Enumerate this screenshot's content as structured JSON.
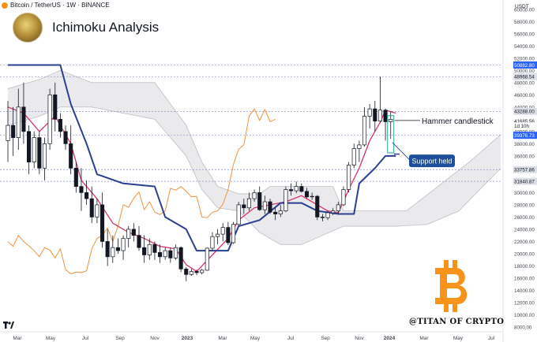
{
  "header": {
    "symbol": "Bitcoin / TetherUS · 1W · BINANCE",
    "title": "Ichimoku Analysis",
    "currency": "USDT"
  },
  "branding": {
    "watermark": "@TITAN OF CRYPTO",
    "logo_letter": "₿",
    "tv_logo": "TV"
  },
  "annotations": {
    "hammer": "Hammer candlestick",
    "support": "Support held"
  },
  "colors": {
    "up": "#26a69a",
    "down": "#ef5350",
    "bar": "#131722",
    "kijun": "#2a3f8f",
    "tenkan": "#d6336c",
    "chikou": "#f0923b",
    "cloud": "#e6e6ea",
    "axis_badge": "#2962ff",
    "bitcoin": "#f7931a"
  },
  "chart_data": {
    "type": "candlestick",
    "title": "Ichimoku Analysis",
    "x_axis_labels": [
      "Mar",
      "May",
      "Jul",
      "Sep",
      "Nov",
      "2023",
      "Mar",
      "May",
      "Jul",
      "Sep",
      "Nov",
      "2024",
      "Mar",
      "May",
      "Jul"
    ],
    "y_axis_ticks": [
      8000,
      10000,
      12000,
      14000,
      16000,
      18000,
      20000,
      22000,
      24000,
      26000,
      28000,
      30000,
      32000,
      34000,
      36000,
      38000,
      40000,
      42000,
      44000,
      46000,
      48000,
      50000,
      52000,
      54000,
      56000,
      58000,
      60000
    ],
    "price_labels": [
      {
        "label": "50882.80",
        "value": 50883,
        "style": "blue"
      },
      {
        "label": "48968.54",
        "value": 48969,
        "style": "gray"
      },
      {
        "label": "43288.00",
        "value": 43288,
        "style": "gray"
      },
      {
        "label": "41685.56",
        "value": 41686,
        "style": "plain"
      },
      {
        "label": "1d 10h",
        "value": 40900,
        "style": "plain"
      },
      {
        "label": "39376.73",
        "value": 39377,
        "style": "blue"
      },
      {
        "label": "33757.86",
        "value": 33758,
        "style": "gray"
      },
      {
        "label": "31840.87",
        "value": 31841,
        "style": "gray"
      }
    ],
    "horizontal_lines": [
      50883,
      48969,
      43288,
      39377,
      33758,
      31841
    ],
    "ylim": [
      8000,
      61000
    ],
    "candles": [
      [
        38500,
        45000,
        35000,
        41000
      ],
      [
        41000,
        44000,
        36000,
        39000
      ],
      [
        39000,
        47000,
        37000,
        44000
      ],
      [
        44000,
        48000,
        38000,
        40000
      ],
      [
        40000,
        41000,
        33000,
        35000
      ],
      [
        35000,
        40000,
        34000,
        39000
      ],
      [
        39000,
        40000,
        33000,
        34000
      ],
      [
        34000,
        39000,
        32000,
        38000
      ],
      [
        38000,
        47000,
        37000,
        46000
      ],
      [
        46000,
        48000,
        40000,
        42000
      ],
      [
        42000,
        43000,
        39000,
        40000
      ],
      [
        40000,
        41000,
        37000,
        38000
      ],
      [
        38000,
        41000,
        33000,
        34000
      ],
      [
        34000,
        35000,
        30000,
        31000
      ],
      [
        31000,
        34000,
        27000,
        30000
      ],
      [
        30000,
        32000,
        28000,
        29000
      ],
      [
        29000,
        31000,
        25000,
        26000
      ],
      [
        26000,
        29000,
        25000,
        28000
      ],
      [
        28000,
        30000,
        21000,
        22000
      ],
      [
        22000,
        24000,
        18000,
        19500
      ],
      [
        19500,
        23000,
        18500,
        21000
      ],
      [
        21000,
        22500,
        20000,
        20500
      ],
      [
        20500,
        23000,
        19000,
        22500
      ],
      [
        22500,
        24500,
        21000,
        24000
      ],
      [
        24000,
        25000,
        22000,
        23000
      ],
      [
        23000,
        24500,
        20500,
        21000
      ],
      [
        21000,
        23000,
        18500,
        19800
      ],
      [
        19800,
        22500,
        19000,
        21500
      ],
      [
        21500,
        22000,
        19000,
        20200
      ],
      [
        20200,
        21500,
        18500,
        19500
      ],
      [
        19500,
        21000,
        19000,
        20500
      ],
      [
        20500,
        21000,
        18500,
        19300
      ],
      [
        19300,
        21500,
        19000,
        21000
      ],
      [
        21000,
        21200,
        17000,
        17500
      ],
      [
        17500,
        17800,
        15500,
        16600
      ],
      [
        16600,
        17500,
        16400,
        17100
      ],
      [
        17100,
        17400,
        16500,
        16900
      ],
      [
        16900,
        17500,
        16600,
        17300
      ],
      [
        17300,
        21000,
        17200,
        20900
      ],
      [
        20900,
        23500,
        20500,
        22800
      ],
      [
        22800,
        24000,
        21500,
        23200
      ],
      [
        23200,
        25000,
        22000,
        24300
      ],
      [
        24300,
        25200,
        21400,
        21800
      ],
      [
        21800,
        25200,
        21600,
        24800
      ],
      [
        24800,
        28500,
        24500,
        28000
      ],
      [
        28000,
        29000,
        26500,
        27500
      ],
      [
        27500,
        30000,
        27000,
        29000
      ],
      [
        29000,
        30500,
        28500,
        30000
      ],
      [
        30000,
        31000,
        27000,
        27200
      ],
      [
        27200,
        29500,
        26500,
        28500
      ],
      [
        28500,
        29000,
        26500,
        26800
      ],
      [
        26800,
        27500,
        25500,
        26500
      ],
      [
        26500,
        28000,
        26000,
        27000
      ],
      [
        27000,
        31000,
        26800,
        30500
      ],
      [
        30500,
        31500,
        29500,
        30300
      ],
      [
        30300,
        31800,
        29900,
        31000
      ],
      [
        31000,
        31500,
        30000,
        30200
      ],
      [
        30200,
        30800,
        29000,
        29300
      ],
      [
        29300,
        30000,
        28800,
        29400
      ],
      [
        29400,
        29600,
        25500,
        26000
      ],
      [
        26000,
        26500,
        25300,
        25900
      ],
      [
        25900,
        27000,
        25500,
        26700
      ],
      [
        26700,
        27500,
        26300,
        27000
      ],
      [
        27000,
        28500,
        26500,
        28000
      ],
      [
        28000,
        31000,
        27800,
        30500
      ],
      [
        30500,
        35000,
        30000,
        34500
      ],
      [
        34500,
        38000,
        34000,
        37200
      ],
      [
        37200,
        38500,
        35000,
        37800
      ],
      [
        37800,
        44000,
        37500,
        42500
      ],
      [
        42500,
        44500,
        40500,
        43700
      ],
      [
        43700,
        45000,
        40000,
        41700
      ],
      [
        41700,
        49000,
        41500,
        43500
      ],
      [
        43500,
        43800,
        38500,
        41600
      ],
      [
        41600,
        43300,
        38800,
        42000
      ]
    ],
    "kijun": [
      [
        0,
        50883
      ],
      [
        10,
        50883
      ],
      [
        12,
        44500
      ],
      [
        15,
        38000
      ],
      [
        17,
        33000
      ],
      [
        22,
        31500
      ],
      [
        28,
        31000
      ],
      [
        30,
        26000
      ],
      [
        34,
        24000
      ],
      [
        36,
        20500
      ],
      [
        42,
        20500
      ],
      [
        44,
        24500
      ],
      [
        48,
        25500
      ],
      [
        52,
        28300
      ],
      [
        56,
        28300
      ],
      [
        59,
        27000
      ],
      [
        63,
        26500
      ],
      [
        66,
        26500
      ],
      [
        67,
        31500
      ],
      [
        70,
        34000
      ],
      [
        72,
        36000
      ],
      [
        74,
        36000
      ]
    ],
    "tenkan": [
      [
        0,
        44000
      ],
      [
        3,
        43000
      ],
      [
        6,
        40000
      ],
      [
        9,
        42500
      ],
      [
        12,
        38000
      ],
      [
        14,
        32000
      ],
      [
        17,
        29000
      ],
      [
        20,
        25000
      ],
      [
        23,
        23500
      ],
      [
        26,
        22500
      ],
      [
        29,
        21200
      ],
      [
        32,
        20800
      ],
      [
        34,
        18200
      ],
      [
        36,
        17100
      ],
      [
        39,
        19800
      ],
      [
        42,
        22500
      ],
      [
        44,
        25500
      ],
      [
        47,
        27500
      ],
      [
        50,
        28000
      ],
      [
        53,
        28500
      ],
      [
        56,
        29500
      ],
      [
        59,
        28000
      ],
      [
        61,
        27000
      ],
      [
        63,
        26700
      ],
      [
        65,
        30500
      ],
      [
        67,
        34000
      ],
      [
        69,
        38500
      ],
      [
        71,
        41500
      ],
      [
        72,
        43500
      ],
      [
        74,
        43000
      ]
    ],
    "chikou": [
      [
        0,
        22000
      ],
      [
        1,
        21200
      ],
      [
        2,
        23000
      ],
      [
        3,
        22000
      ],
      [
        4,
        21300
      ],
      [
        5,
        20500
      ],
      [
        6,
        19500
      ],
      [
        7,
        21000
      ],
      [
        8,
        20600
      ],
      [
        9,
        19300
      ],
      [
        10,
        20800
      ],
      [
        11,
        17400
      ],
      [
        12,
        16700
      ],
      [
        13,
        17000
      ],
      [
        14,
        16900
      ],
      [
        15,
        17200
      ],
      [
        16,
        20800
      ],
      [
        17,
        22500
      ],
      [
        18,
        23000
      ],
      [
        19,
        24200
      ],
      [
        20,
        22000
      ],
      [
        21,
        24500
      ],
      [
        22,
        28000
      ],
      [
        23,
        27600
      ],
      [
        24,
        29100
      ],
      [
        25,
        30100
      ],
      [
        26,
        27200
      ],
      [
        27,
        28500
      ],
      [
        28,
        26800
      ],
      [
        29,
        26400
      ],
      [
        30,
        27000
      ],
      [
        31,
        30700
      ],
      [
        32,
        30400
      ],
      [
        33,
        31000
      ],
      [
        34,
        30200
      ],
      [
        35,
        29300
      ],
      [
        36,
        29400
      ],
      [
        37,
        26000
      ],
      [
        38,
        25900
      ],
      [
        39,
        26800
      ],
      [
        40,
        27000
      ],
      [
        41,
        28100
      ],
      [
        42,
        30500
      ],
      [
        43,
        34600
      ],
      [
        44,
        37100
      ],
      [
        45,
        37800
      ],
      [
        46,
        42500
      ],
      [
        47,
        43700
      ],
      [
        48,
        41800
      ],
      [
        49,
        43600
      ],
      [
        50,
        41600
      ],
      [
        51,
        42000
      ]
    ],
    "cloud_upper": [
      [
        0,
        47000
      ],
      [
        6,
        48500
      ],
      [
        10,
        50000
      ],
      [
        16,
        48000
      ],
      [
        22,
        48000
      ],
      [
        28,
        48000
      ],
      [
        31,
        44500
      ],
      [
        34,
        41000
      ],
      [
        37,
        35000
      ],
      [
        40,
        31000
      ],
      [
        44,
        29800
      ],
      [
        48,
        29800
      ],
      [
        50,
        31000
      ],
      [
        54,
        31000
      ],
      [
        58,
        31000
      ],
      [
        62,
        31000
      ],
      [
        64,
        27000
      ],
      [
        66,
        27000
      ],
      [
        70,
        27000
      ],
      [
        76,
        27000
      ],
      [
        82,
        31000
      ],
      [
        88,
        35000
      ],
      [
        94,
        39500
      ]
    ],
    "cloud_lower": [
      [
        0,
        41000
      ],
      [
        6,
        42500
      ],
      [
        10,
        44000
      ],
      [
        16,
        44000
      ],
      [
        22,
        43000
      ],
      [
        28,
        42000
      ],
      [
        31,
        39000
      ],
      [
        34,
        36000
      ],
      [
        37,
        30500
      ],
      [
        40,
        27500
      ],
      [
        44,
        27000
      ],
      [
        48,
        23500
      ],
      [
        52,
        21500
      ],
      [
        56,
        21500
      ],
      [
        60,
        23000
      ],
      [
        64,
        24500
      ],
      [
        68,
        24500
      ],
      [
        74,
        24500
      ],
      [
        80,
        24800
      ],
      [
        86,
        27000
      ],
      [
        94,
        34000
      ]
    ]
  }
}
